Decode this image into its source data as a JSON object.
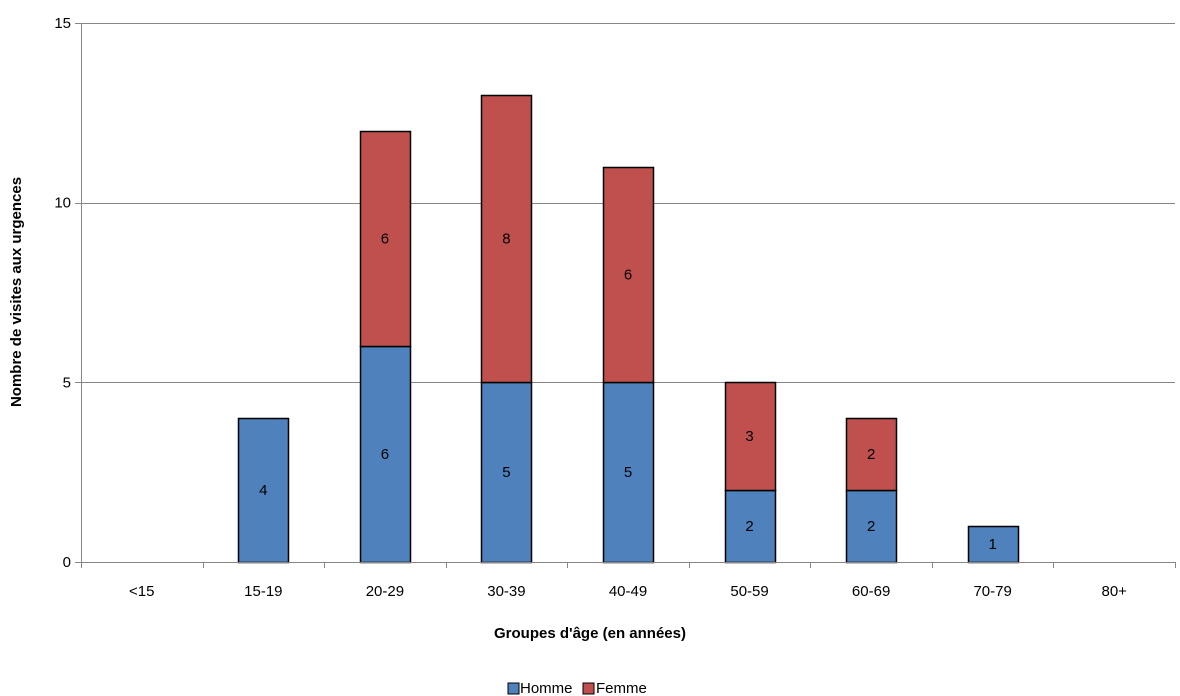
{
  "chart_data": {
    "type": "bar",
    "stacked": true,
    "categories": [
      "<15",
      "15-19",
      "20-29",
      "30-39",
      "40-49",
      "50-59",
      "60-69",
      "70-79",
      "80+"
    ],
    "series": [
      {
        "name": "Homme",
        "color": "#4F81BD",
        "values": [
          0,
          4,
          6,
          5,
          5,
          2,
          2,
          1,
          0
        ]
      },
      {
        "name": "Femme",
        "color": "#C0504D",
        "values": [
          0,
          0,
          6,
          8,
          6,
          3,
          2,
          0,
          0
        ]
      }
    ],
    "xlabel": "Groupes d'âge (en années)",
    "ylabel": "Nombre de visites aux urgences",
    "ylim": [
      0,
      15
    ],
    "yticks": [
      0,
      5,
      10,
      15
    ],
    "grid": true,
    "legend": "bottom"
  }
}
